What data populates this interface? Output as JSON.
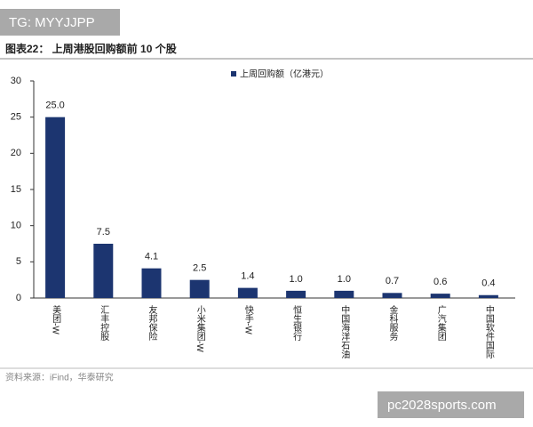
{
  "watermark": "TG: MYYJJPP",
  "site_watermark": "pc2028sports.com",
  "source": "资料来源：iFind，华泰研究",
  "chart_data": {
    "type": "bar",
    "title": "图表22：  上周港股回购额前 10 个股",
    "categories": [
      "美团-W",
      "汇丰控股",
      "友邦保险",
      "小米集团-W",
      "快手-W",
      "恒生银行",
      "中国海洋石油",
      "金科服务",
      "广汽集团",
      "中国软件国际"
    ],
    "series": [
      {
        "name": "上周回购额（亿港元）",
        "color": "#1c3570",
        "values": [
          25.0,
          7.5,
          4.1,
          2.5,
          1.4,
          1.0,
          1.0,
          0.7,
          0.6,
          0.4
        ],
        "value_labels": [
          "25.0",
          "7.5",
          "4.1",
          "2.5",
          "1.4",
          "1.0",
          "1.0",
          "0.7",
          "0.6",
          "0.4"
        ]
      }
    ],
    "ylim": [
      0,
      30
    ],
    "yticks": [
      0,
      5,
      10,
      15,
      20,
      25,
      30
    ],
    "grid": false
  }
}
